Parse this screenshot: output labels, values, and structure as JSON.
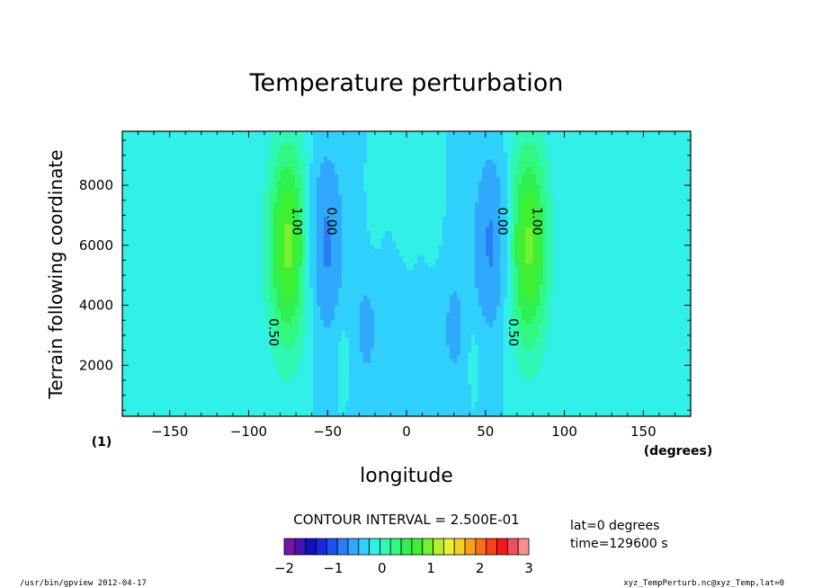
{
  "chart_data": {
    "type": "heatmap",
    "title": "Temperature perturbation",
    "xlabel": "longitude",
    "ylabel": "Terrain following coordinate",
    "x_unit": "(degrees)",
    "frame_label": "(1)",
    "xlim": [
      -180,
      180
    ],
    "ylim": [
      300,
      9800
    ],
    "x_ticks": [
      -150,
      -100,
      -50,
      0,
      50,
      100,
      150
    ],
    "y_ticks": [
      2000,
      4000,
      6000,
      8000
    ],
    "contour_interval_text": "CONTOUR INTERVAL = 2.500E-01",
    "contour_labels": [
      {
        "text": "1.00",
        "x": -72,
        "y": 6800
      },
      {
        "text": "0.00",
        "x": -50,
        "y": 6800
      },
      {
        "text": "0.50",
        "x": -87,
        "y": 3100
      },
      {
        "text": "0.00",
        "x": 58,
        "y": 6800
      },
      {
        "text": "1.00",
        "x": 80,
        "y": 6800
      },
      {
        "text": "0.50",
        "x": 65,
        "y": 3100
      }
    ],
    "colorbar": {
      "min": -2,
      "max": 3,
      "tick_labels": [
        "−2",
        "−1",
        "0",
        "1",
        "2",
        "3"
      ],
      "colors": [
        "#7a12a8",
        "#4612b4",
        "#1010c0",
        "#1828e0",
        "#2050f0",
        "#2c7cf8",
        "#30a8fc",
        "#30d0fc",
        "#30f0e8",
        "#30f8b4",
        "#30f880",
        "#30f050",
        "#40f030",
        "#78f030",
        "#b0f030",
        "#e8f030",
        "#f8d020",
        "#f8a018",
        "#f87018",
        "#f84018",
        "#f81818",
        "#f84c60",
        "#f89090"
      ]
    },
    "features": [
      {
        "lon": 77,
        "alt": 6000,
        "slon": 9,
        "salt": 2500,
        "amp": 1.33
      },
      {
        "lon": -75,
        "alt": 6000,
        "slon": 9,
        "salt": 2500,
        "amp": 1.33
      },
      {
        "lon": 55,
        "alt": 6100,
        "slon": 9,
        "salt": 2300,
        "amp": -0.58
      },
      {
        "lon": -52,
        "alt": 6100,
        "slon": 9,
        "salt": 2300,
        "amp": -0.58
      },
      {
        "lon": 30,
        "alt": 3200,
        "slon": 7,
        "salt": 1800,
        "amp": -0.3
      },
      {
        "lon": -25,
        "alt": 3200,
        "slon": 7,
        "salt": 1800,
        "amp": -0.3
      },
      {
        "lon": 0,
        "alt": 8600,
        "slon": 8,
        "salt": 900,
        "amp": 0.25
      },
      {
        "lon": 18,
        "alt": 7200,
        "slon": 3,
        "salt": 1000,
        "amp": 0.18
      },
      {
        "lon": -20,
        "alt": 7200,
        "slon": 3,
        "salt": 1000,
        "amp": 0.18
      },
      {
        "lon": 42,
        "alt": 2400,
        "slon": 3,
        "salt": 1000,
        "amp": 0.18
      },
      {
        "lon": -40,
        "alt": 2400,
        "slon": 3,
        "salt": 1000,
        "amp": 0.18
      }
    ]
  },
  "info": {
    "lat": "lat=0  degrees",
    "time": "time=129600  s"
  },
  "footer": {
    "left": "/usr/bin/gpview   2012-04-17",
    "right": "xyz_TempPerturb.nc@xyz_Temp,lat=0"
  }
}
